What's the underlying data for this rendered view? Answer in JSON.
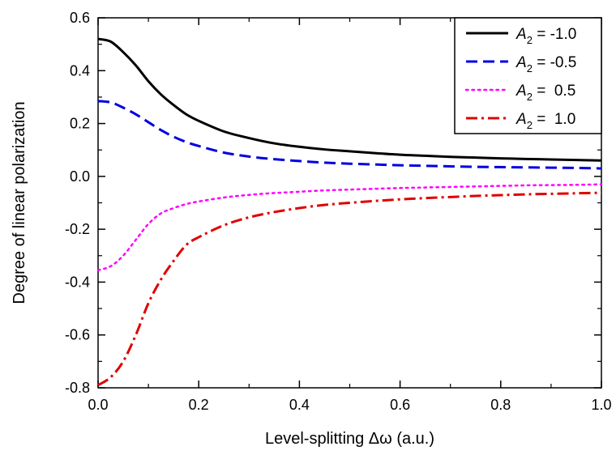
{
  "chart_data": {
    "type": "line",
    "xlabel": "Level-splitting Δω (a.u.)",
    "ylabel": "Degree of linear polarization",
    "xlim": [
      0.0,
      1.0
    ],
    "ylim": [
      -0.8,
      0.6
    ],
    "x_ticks": [
      "0.0",
      "0.2",
      "0.4",
      "0.6",
      "0.8",
      "1.0"
    ],
    "y_ticks": [
      "0.6",
      "0.4",
      "0.2",
      "0.0",
      "-0.2",
      "-0.4",
      "-0.6",
      "-0.8"
    ],
    "grid": false,
    "legend_position": "top-right",
    "x": [
      0.0,
      0.025,
      0.05,
      0.075,
      0.1,
      0.125,
      0.15,
      0.175,
      0.2,
      0.25,
      0.3,
      0.35,
      0.4,
      0.45,
      0.5,
      0.55,
      0.6,
      0.65,
      0.7,
      0.75,
      0.8,
      0.85,
      0.9,
      0.95,
      1.0
    ],
    "series": [
      {
        "legend_var": "A",
        "legend_sub": "2",
        "legend_value": " = -1.0",
        "color": "#000000",
        "dash": "solid",
        "values": [
          0.52,
          0.51,
          0.47,
          0.42,
          0.36,
          0.31,
          0.27,
          0.235,
          0.21,
          0.17,
          0.145,
          0.125,
          0.112,
          0.102,
          0.095,
          0.088,
          0.082,
          0.078,
          0.074,
          0.071,
          0.068,
          0.066,
          0.064,
          0.062,
          0.06
        ]
      },
      {
        "legend_var": "A",
        "legend_sub": "2",
        "legend_value": " = -0.5",
        "color": "#0000e0",
        "dash": "dash",
        "values": [
          0.285,
          0.28,
          0.26,
          0.235,
          0.205,
          0.175,
          0.15,
          0.13,
          0.115,
          0.09,
          0.075,
          0.065,
          0.058,
          0.052,
          0.048,
          0.045,
          0.042,
          0.04,
          0.038,
          0.036,
          0.035,
          0.034,
          0.033,
          0.032,
          0.03
        ]
      },
      {
        "legend_var": "A",
        "legend_sub": "2",
        "legend_value": " =  0.5",
        "color": "#ff00ff",
        "dash": "dot",
        "values": [
          -0.355,
          -0.34,
          -0.3,
          -0.24,
          -0.18,
          -0.14,
          -0.12,
          -0.105,
          -0.095,
          -0.08,
          -0.07,
          -0.063,
          -0.058,
          -0.053,
          -0.05,
          -0.047,
          -0.044,
          -0.042,
          -0.04,
          -0.038,
          -0.036,
          -0.034,
          -0.033,
          -0.032,
          -0.03
        ]
      },
      {
        "legend_var": "A",
        "legend_sub": "2",
        "legend_value": " =  1.0",
        "color": "#e00000",
        "dash": "dashdot",
        "values": [
          -0.79,
          -0.76,
          -0.7,
          -0.6,
          -0.48,
          -0.39,
          -0.32,
          -0.26,
          -0.23,
          -0.185,
          -0.155,
          -0.135,
          -0.12,
          -0.108,
          -0.1,
          -0.093,
          -0.087,
          -0.082,
          -0.078,
          -0.074,
          -0.071,
          -0.068,
          -0.066,
          -0.064,
          -0.062
        ]
      }
    ]
  }
}
